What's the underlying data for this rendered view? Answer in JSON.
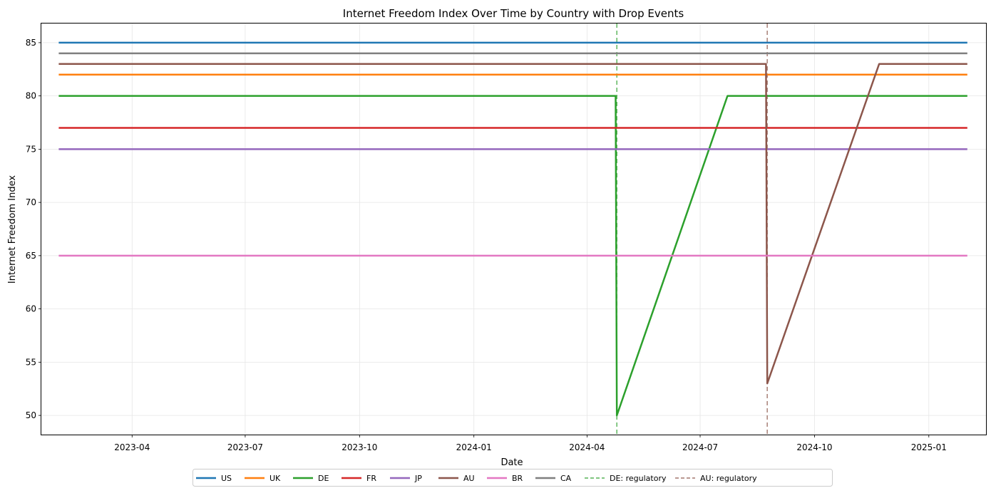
{
  "chart_data": {
    "type": "line",
    "title": "Internet Freedom Index Over Time by Country with Drop Events",
    "xlabel": "Date",
    "ylabel": "Internet Freedom Index",
    "x_ticks": [
      "2023-04",
      "2023-07",
      "2023-10",
      "2024-01",
      "2024-04",
      "2024-07",
      "2024-10",
      "2025-01"
    ],
    "y_ticks": [
      50,
      55,
      60,
      65,
      70,
      75,
      80,
      85
    ],
    "xlim": [
      "2023-01-18",
      "2025-02-16"
    ],
    "ylim": [
      48.2,
      86.8
    ],
    "grid": true,
    "legend_position": "bottom-center",
    "series": [
      {
        "name": "US",
        "color": "#1f77b4",
        "points": [
          [
            "2023-02-01",
            85
          ],
          [
            "2025-02-01",
            85
          ]
        ]
      },
      {
        "name": "UK",
        "color": "#ff7f0e",
        "points": [
          [
            "2023-02-01",
            82
          ],
          [
            "2025-02-01",
            82
          ]
        ]
      },
      {
        "name": "DE",
        "color": "#2ca02c",
        "points": [
          [
            "2023-02-01",
            80
          ],
          [
            "2024-04-24",
            80
          ],
          [
            "2024-04-25",
            50
          ],
          [
            "2024-07-23",
            80
          ],
          [
            "2025-02-01",
            80
          ]
        ]
      },
      {
        "name": "FR",
        "color": "#d62728",
        "points": [
          [
            "2023-02-01",
            77
          ],
          [
            "2025-02-01",
            77
          ]
        ]
      },
      {
        "name": "JP",
        "color": "#9467bd",
        "points": [
          [
            "2023-02-01",
            75
          ],
          [
            "2025-02-01",
            75
          ]
        ]
      },
      {
        "name": "AU",
        "color": "#8c564b",
        "points": [
          [
            "2023-02-01",
            83
          ],
          [
            "2024-08-23",
            83
          ],
          [
            "2024-08-24",
            53
          ],
          [
            "2024-11-22",
            83
          ],
          [
            "2025-02-01",
            83
          ]
        ]
      },
      {
        "name": "BR",
        "color": "#e377c2",
        "points": [
          [
            "2023-02-01",
            65
          ],
          [
            "2025-02-01",
            65
          ]
        ]
      },
      {
        "name": "CA",
        "color": "#7f7f7f",
        "points": [
          [
            "2023-02-01",
            84
          ],
          [
            "2025-02-01",
            84
          ]
        ]
      }
    ],
    "events": [
      {
        "name": "DE: regulatory",
        "date": "2024-04-25",
        "color": "#2ca02c"
      },
      {
        "name": "AU: regulatory",
        "date": "2024-08-24",
        "color": "#8c564b"
      }
    ]
  }
}
